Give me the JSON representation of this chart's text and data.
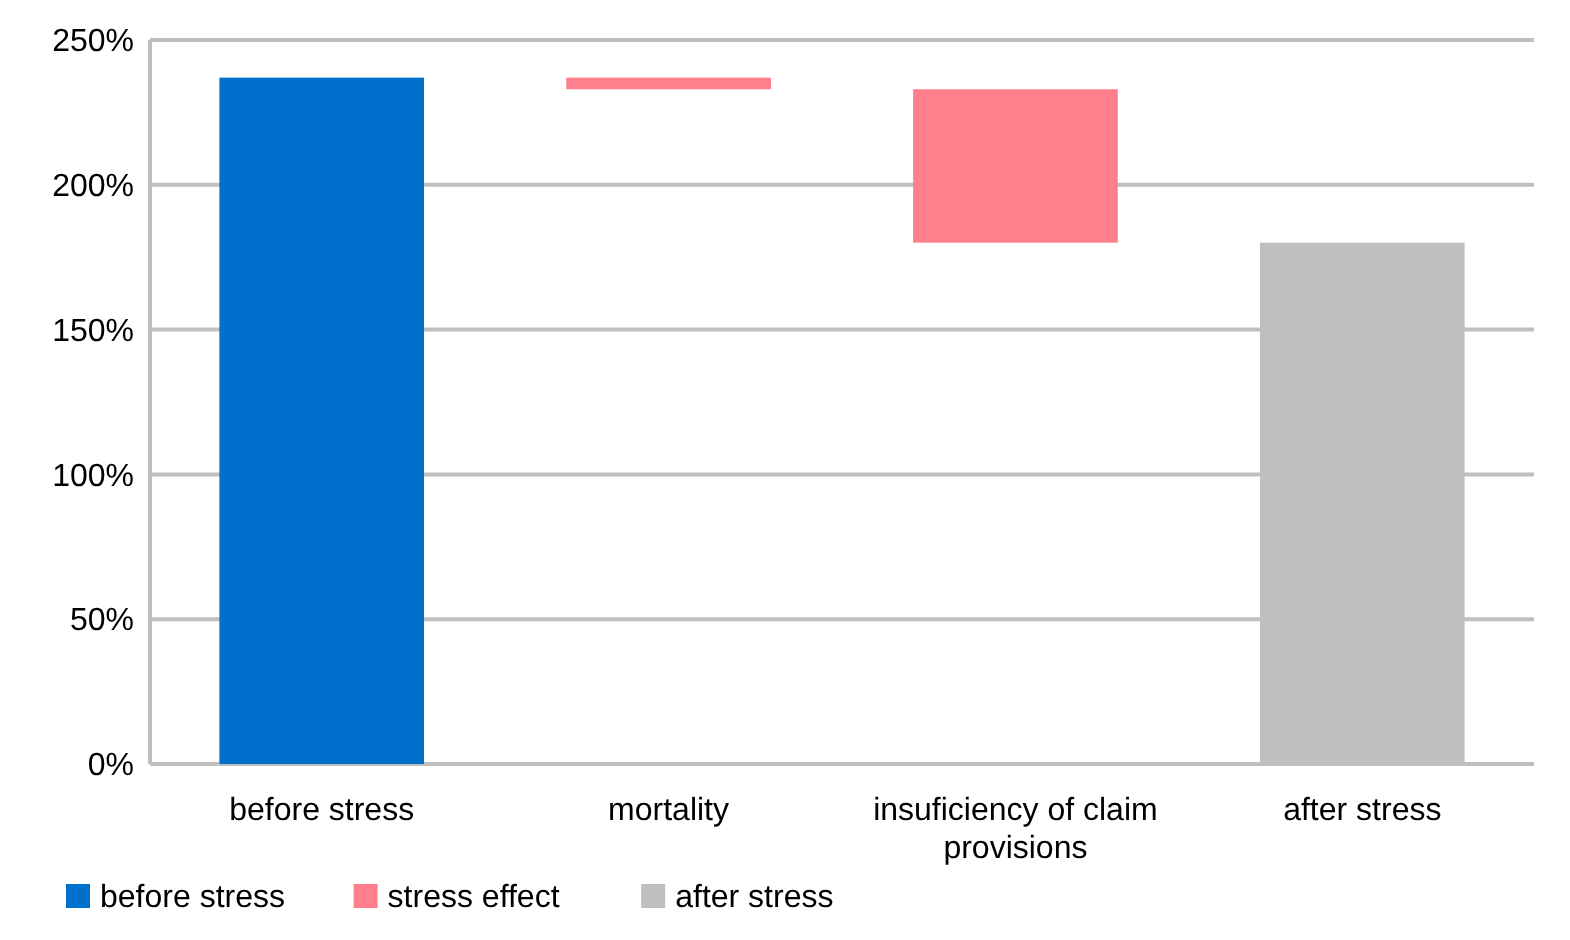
{
  "chart_data": {
    "type": "bar",
    "categories": [
      "before stress",
      "mortality",
      "insuficiency of claim provisions",
      "after stress"
    ],
    "series": [
      {
        "name": "before stress",
        "color": "#0070cc",
        "values": [
          237,
          null,
          null,
          null
        ],
        "base": [
          0,
          null,
          null,
          null
        ]
      },
      {
        "name": "stress effect",
        "color": "#ff808c",
        "values": [
          null,
          -4,
          -53,
          null
        ],
        "base": [
          null,
          237,
          233,
          null
        ]
      },
      {
        "name": "after stress",
        "color": "#bfbfbf",
        "values": [
          null,
          null,
          null,
          180
        ],
        "base": [
          null,
          null,
          null,
          0
        ]
      }
    ],
    "ylim": [
      0,
      250
    ],
    "yticks": [
      {
        "value": 0,
        "label": "0%"
      },
      {
        "value": 50,
        "label": "50%"
      },
      {
        "value": 100,
        "label": "100%"
      },
      {
        "value": 150,
        "label": "150%"
      },
      {
        "value": 200,
        "label": "200%"
      },
      {
        "value": 250,
        "label": "250%"
      }
    ],
    "grid": "y",
    "legend": "bottom"
  }
}
